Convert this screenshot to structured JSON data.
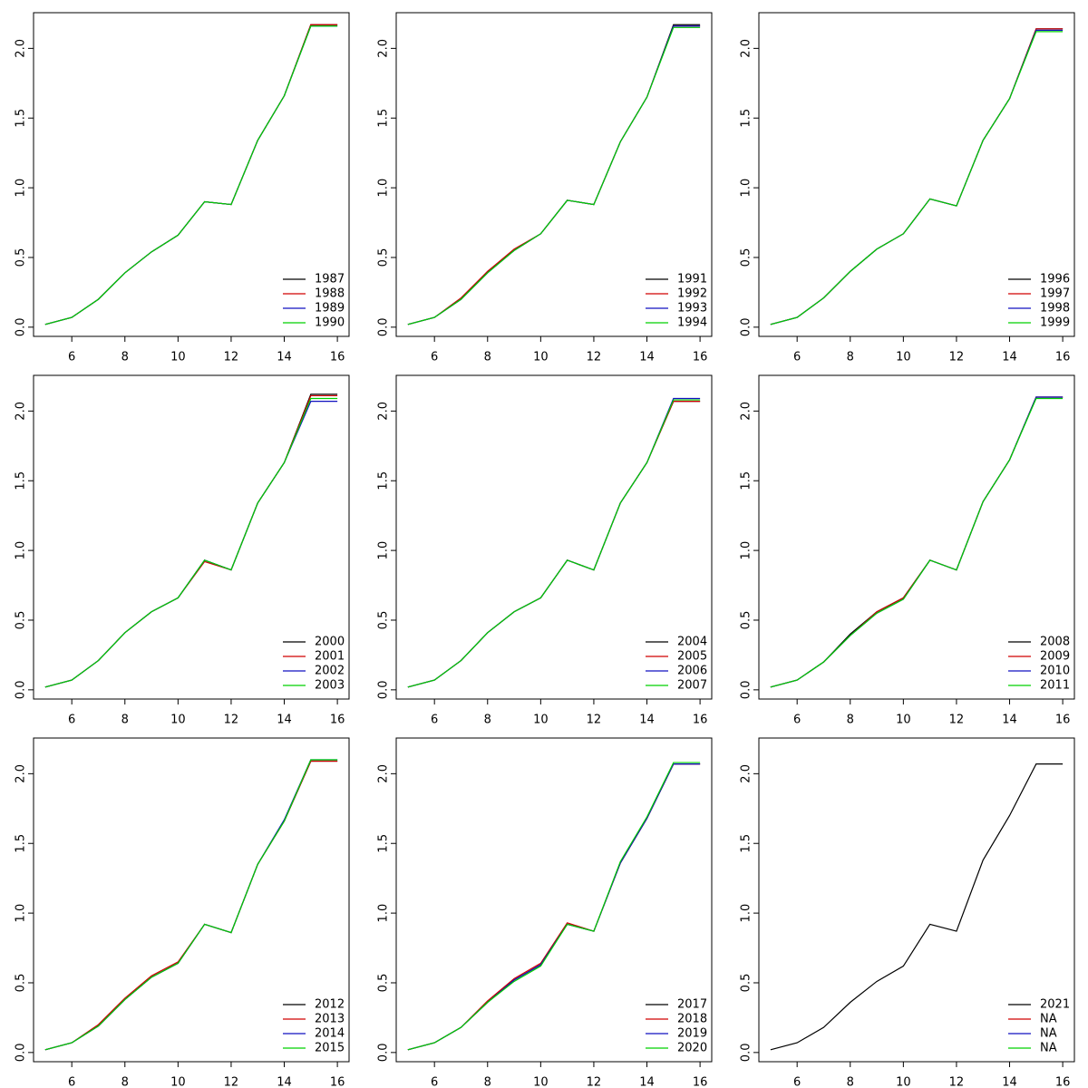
{
  "chart_data": [
    {
      "type": "line",
      "x": [
        5,
        6,
        7,
        8,
        9,
        10,
        11,
        12,
        13,
        14,
        15,
        16
      ],
      "xlim": [
        4.56,
        16.44
      ],
      "xticks": [
        6,
        8,
        10,
        12,
        14,
        16
      ],
      "ylim": [
        -0.066,
        2.256
      ],
      "yticks": [
        {
          "value": 0,
          "label": "0.0"
        },
        0.5,
        {
          "value": 1,
          "label": "1.0"
        },
        1.5,
        {
          "value": 2,
          "label": "2.0"
        }
      ],
      "legend": "bottomright",
      "series": [
        {
          "name": "1987",
          "color": "#000000",
          "values": [
            0.02,
            0.07,
            0.2,
            0.39,
            0.54,
            0.66,
            0.9,
            0.88,
            1.34,
            1.66,
            2.17,
            2.17
          ]
        },
        {
          "name": "1988",
          "color": "#d00000",
          "values": [
            0.02,
            0.07,
            0.2,
            0.39,
            0.54,
            0.66,
            0.9,
            0.88,
            1.34,
            1.66,
            2.17,
            2.17
          ]
        },
        {
          "name": "1989",
          "color": "#1010c0",
          "values": [
            0.02,
            0.07,
            0.2,
            0.39,
            0.54,
            0.66,
            0.9,
            0.88,
            1.34,
            1.66,
            2.16,
            2.16
          ]
        },
        {
          "name": "1990",
          "color": "#00d000",
          "values": [
            0.02,
            0.07,
            0.2,
            0.39,
            0.54,
            0.66,
            0.9,
            0.88,
            1.34,
            1.66,
            2.16,
            2.16
          ]
        }
      ]
    },
    {
      "type": "line",
      "x": [
        5,
        6,
        7,
        8,
        9,
        10,
        11,
        12,
        13,
        14,
        15,
        16
      ],
      "xlim": [
        4.56,
        16.44
      ],
      "xticks": [
        6,
        8,
        10,
        12,
        14,
        16
      ],
      "ylim": [
        -0.066,
        2.256
      ],
      "yticks": [
        {
          "value": 0,
          "label": "0.0"
        },
        0.5,
        {
          "value": 1,
          "label": "1.0"
        },
        1.5,
        {
          "value": 2,
          "label": "2.0"
        }
      ],
      "legend": "bottomright",
      "series": [
        {
          "name": "1991",
          "color": "#000000",
          "values": [
            0.02,
            0.07,
            0.2,
            0.4,
            0.55,
            0.67,
            0.91,
            0.88,
            1.33,
            1.65,
            2.17,
            2.17
          ]
        },
        {
          "name": "1992",
          "color": "#d00000",
          "values": [
            0.02,
            0.07,
            0.21,
            0.4,
            0.56,
            0.67,
            0.91,
            0.88,
            1.33,
            1.65,
            2.16,
            2.16
          ]
        },
        {
          "name": "1993",
          "color": "#1010c0",
          "values": [
            0.02,
            0.07,
            0.2,
            0.39,
            0.55,
            0.67,
            0.91,
            0.88,
            1.33,
            1.65,
            2.16,
            2.16
          ]
        },
        {
          "name": "1994",
          "color": "#00d000",
          "values": [
            0.02,
            0.07,
            0.2,
            0.39,
            0.55,
            0.67,
            0.91,
            0.88,
            1.33,
            1.65,
            2.15,
            2.15
          ]
        }
      ]
    },
    {
      "type": "line",
      "x": [
        5,
        6,
        7,
        8,
        9,
        10,
        11,
        12,
        13,
        14,
        15,
        16
      ],
      "xlim": [
        4.56,
        16.44
      ],
      "xticks": [
        6,
        8,
        10,
        12,
        14,
        16
      ],
      "ylim": [
        -0.066,
        2.256
      ],
      "yticks": [
        {
          "value": 0,
          "label": "0.0"
        },
        0.5,
        {
          "value": 1,
          "label": "1.0"
        },
        1.5,
        {
          "value": 2,
          "label": "2.0"
        }
      ],
      "legend": "bottomright",
      "series": [
        {
          "name": "1996",
          "color": "#000000",
          "values": [
            0.02,
            0.07,
            0.21,
            0.4,
            0.56,
            0.67,
            0.92,
            0.87,
            1.34,
            1.64,
            2.14,
            2.14
          ]
        },
        {
          "name": "1997",
          "color": "#d00000",
          "values": [
            0.02,
            0.07,
            0.21,
            0.4,
            0.56,
            0.67,
            0.92,
            0.87,
            1.34,
            1.64,
            2.14,
            2.14
          ]
        },
        {
          "name": "1998",
          "color": "#1010c0",
          "values": [
            0.02,
            0.07,
            0.21,
            0.4,
            0.56,
            0.67,
            0.92,
            0.87,
            1.34,
            1.64,
            2.13,
            2.13
          ]
        },
        {
          "name": "1999",
          "color": "#00d000",
          "values": [
            0.02,
            0.07,
            0.21,
            0.4,
            0.56,
            0.67,
            0.92,
            0.87,
            1.34,
            1.64,
            2.12,
            2.12
          ]
        }
      ]
    },
    {
      "type": "line",
      "x": [
        5,
        6,
        7,
        8,
        9,
        10,
        11,
        12,
        13,
        14,
        15,
        16
      ],
      "xlim": [
        4.56,
        16.44
      ],
      "xticks": [
        6,
        8,
        10,
        12,
        14,
        16
      ],
      "ylim": [
        -0.066,
        2.256
      ],
      "yticks": [
        {
          "value": 0,
          "label": "0.0"
        },
        0.5,
        {
          "value": 1,
          "label": "1.0"
        },
        1.5,
        {
          "value": 2,
          "label": "2.0"
        }
      ],
      "legend": "bottomright",
      "series": [
        {
          "name": "2000",
          "color": "#000000",
          "values": [
            0.02,
            0.07,
            0.21,
            0.41,
            0.56,
            0.66,
            0.93,
            0.86,
            1.34,
            1.63,
            2.12,
            2.12
          ]
        },
        {
          "name": "2001",
          "color": "#d00000",
          "values": [
            0.02,
            0.07,
            0.21,
            0.41,
            0.56,
            0.66,
            0.92,
            0.86,
            1.34,
            1.63,
            2.11,
            2.11
          ]
        },
        {
          "name": "2002",
          "color": "#1010c0",
          "values": [
            0.02,
            0.07,
            0.21,
            0.41,
            0.56,
            0.66,
            0.93,
            0.86,
            1.34,
            1.63,
            2.07,
            2.07
          ]
        },
        {
          "name": "2003",
          "color": "#00d000",
          "values": [
            0.02,
            0.07,
            0.21,
            0.41,
            0.56,
            0.66,
            0.93,
            0.86,
            1.34,
            1.63,
            2.09,
            2.09
          ]
        }
      ]
    },
    {
      "type": "line",
      "x": [
        5,
        6,
        7,
        8,
        9,
        10,
        11,
        12,
        13,
        14,
        15,
        16
      ],
      "xlim": [
        4.56,
        16.44
      ],
      "xticks": [
        6,
        8,
        10,
        12,
        14,
        16
      ],
      "ylim": [
        -0.066,
        2.256
      ],
      "yticks": [
        {
          "value": 0,
          "label": "0.0"
        },
        0.5,
        {
          "value": 1,
          "label": "1.0"
        },
        1.5,
        {
          "value": 2,
          "label": "2.0"
        }
      ],
      "legend": "bottomright",
      "series": [
        {
          "name": "2004",
          "color": "#000000",
          "values": [
            0.02,
            0.07,
            0.21,
            0.41,
            0.56,
            0.66,
            0.93,
            0.86,
            1.34,
            1.63,
            2.07,
            2.07
          ]
        },
        {
          "name": "2005",
          "color": "#d00000",
          "values": [
            0.02,
            0.07,
            0.21,
            0.41,
            0.56,
            0.66,
            0.93,
            0.86,
            1.34,
            1.63,
            2.07,
            2.07
          ]
        },
        {
          "name": "2006",
          "color": "#1010c0",
          "values": [
            0.02,
            0.07,
            0.21,
            0.41,
            0.56,
            0.66,
            0.93,
            0.86,
            1.34,
            1.63,
            2.09,
            2.09
          ]
        },
        {
          "name": "2007",
          "color": "#00d000",
          "values": [
            0.02,
            0.07,
            0.21,
            0.41,
            0.56,
            0.66,
            0.93,
            0.86,
            1.34,
            1.63,
            2.08,
            2.08
          ]
        }
      ]
    },
    {
      "type": "line",
      "x": [
        5,
        6,
        7,
        8,
        9,
        10,
        11,
        12,
        13,
        14,
        15,
        16
      ],
      "xlim": [
        4.56,
        16.44
      ],
      "xticks": [
        6,
        8,
        10,
        12,
        14,
        16
      ],
      "ylim": [
        -0.066,
        2.256
      ],
      "yticks": [
        {
          "value": 0,
          "label": "0.0"
        },
        0.5,
        {
          "value": 1,
          "label": "1.0"
        },
        1.5,
        {
          "value": 2,
          "label": "2.0"
        }
      ],
      "legend": "bottomright",
      "series": [
        {
          "name": "2008",
          "color": "#000000",
          "values": [
            0.02,
            0.07,
            0.2,
            0.4,
            0.56,
            0.66,
            0.93,
            0.86,
            1.35,
            1.65,
            2.1,
            2.1
          ]
        },
        {
          "name": "2009",
          "color": "#d00000",
          "values": [
            0.02,
            0.07,
            0.2,
            0.39,
            0.56,
            0.66,
            0.93,
            0.86,
            1.35,
            1.65,
            2.1,
            2.1
          ]
        },
        {
          "name": "2010",
          "color": "#1010c0",
          "values": [
            0.02,
            0.07,
            0.2,
            0.39,
            0.55,
            0.65,
            0.93,
            0.86,
            1.35,
            1.65,
            2.1,
            2.1
          ]
        },
        {
          "name": "2011",
          "color": "#00d000",
          "values": [
            0.02,
            0.07,
            0.2,
            0.39,
            0.55,
            0.65,
            0.93,
            0.86,
            1.35,
            1.65,
            2.09,
            2.09
          ]
        }
      ]
    },
    {
      "type": "line",
      "x": [
        5,
        6,
        7,
        8,
        9,
        10,
        11,
        12,
        13,
        14,
        15,
        16
      ],
      "xlim": [
        4.56,
        16.44
      ],
      "xticks": [
        6,
        8,
        10,
        12,
        14,
        16
      ],
      "ylim": [
        -0.066,
        2.256
      ],
      "yticks": [
        {
          "value": 0,
          "label": "0.0"
        },
        0.5,
        {
          "value": 1,
          "label": "1.0"
        },
        1.5,
        {
          "value": 2,
          "label": "2.0"
        }
      ],
      "legend": "bottomright",
      "series": [
        {
          "name": "2012",
          "color": "#000000",
          "values": [
            0.02,
            0.07,
            0.19,
            0.38,
            0.54,
            0.64,
            0.92,
            0.86,
            1.35,
            1.66,
            2.09,
            2.09
          ]
        },
        {
          "name": "2013",
          "color": "#d00000",
          "values": [
            0.02,
            0.07,
            0.2,
            0.39,
            0.55,
            0.65,
            0.92,
            0.86,
            1.35,
            1.66,
            2.09,
            2.09
          ]
        },
        {
          "name": "2014",
          "color": "#1010c0",
          "values": [
            0.02,
            0.07,
            0.19,
            0.38,
            0.54,
            0.64,
            0.92,
            0.86,
            1.35,
            1.67,
            2.1,
            2.1
          ]
        },
        {
          "name": "2015",
          "color": "#00d000",
          "values": [
            0.02,
            0.07,
            0.19,
            0.38,
            0.54,
            0.64,
            0.92,
            0.86,
            1.35,
            1.66,
            2.1,
            2.1
          ]
        }
      ]
    },
    {
      "type": "line",
      "x": [
        5,
        6,
        7,
        8,
        9,
        10,
        11,
        12,
        13,
        14,
        15,
        16
      ],
      "xlim": [
        4.56,
        16.44
      ],
      "xticks": [
        6,
        8,
        10,
        12,
        14,
        16
      ],
      "ylim": [
        -0.066,
        2.256
      ],
      "yticks": [
        {
          "value": 0,
          "label": "0.0"
        },
        0.5,
        {
          "value": 1,
          "label": "1.0"
        },
        1.5,
        {
          "value": 2,
          "label": "2.0"
        }
      ],
      "legend": "bottomright",
      "series": [
        {
          "name": "2017",
          "color": "#000000",
          "values": [
            0.02,
            0.07,
            0.18,
            0.36,
            0.52,
            0.63,
            0.92,
            0.87,
            1.36,
            1.68,
            2.07,
            2.07
          ]
        },
        {
          "name": "2018",
          "color": "#d00000",
          "values": [
            0.02,
            0.07,
            0.18,
            0.37,
            0.53,
            0.64,
            0.93,
            0.87,
            1.36,
            1.68,
            2.07,
            2.07
          ]
        },
        {
          "name": "2019",
          "color": "#1010c0",
          "values": [
            0.02,
            0.07,
            0.18,
            0.36,
            0.52,
            0.63,
            0.92,
            0.87,
            1.36,
            1.68,
            2.07,
            2.07
          ]
        },
        {
          "name": "2020",
          "color": "#00d000",
          "values": [
            0.02,
            0.07,
            0.18,
            0.36,
            0.51,
            0.62,
            0.92,
            0.87,
            1.37,
            1.69,
            2.08,
            2.08
          ]
        }
      ]
    },
    {
      "type": "line",
      "x": [
        5,
        6,
        7,
        8,
        9,
        10,
        11,
        12,
        13,
        14,
        15,
        16
      ],
      "xlim": [
        4.56,
        16.44
      ],
      "xticks": [
        6,
        8,
        10,
        12,
        14,
        16
      ],
      "ylim": [
        -0.066,
        2.256
      ],
      "yticks": [
        {
          "value": 0,
          "label": "0.0"
        },
        0.5,
        {
          "value": 1,
          "label": "1.0"
        },
        1.5,
        {
          "value": 2,
          "label": "2.0"
        }
      ],
      "legend": "bottomright",
      "series": [
        {
          "name": "2021",
          "color": "#000000",
          "values": [
            0.02,
            0.07,
            0.18,
            0.36,
            0.51,
            0.62,
            0.92,
            0.87,
            1.38,
            1.7,
            2.07,
            2.07
          ]
        },
        {
          "name": "NA",
          "color": "#d00000",
          "values": [
            null,
            null,
            null,
            null,
            null,
            null,
            null,
            null,
            null,
            null,
            null,
            null
          ]
        },
        {
          "name": "NA",
          "color": "#1010c0",
          "values": [
            null,
            null,
            null,
            null,
            null,
            null,
            null,
            null,
            null,
            null,
            null,
            null
          ]
        },
        {
          "name": "NA",
          "color": "#00d000",
          "values": [
            null,
            null,
            null,
            null,
            null,
            null,
            null,
            null,
            null,
            null,
            null,
            null
          ]
        }
      ]
    }
  ]
}
